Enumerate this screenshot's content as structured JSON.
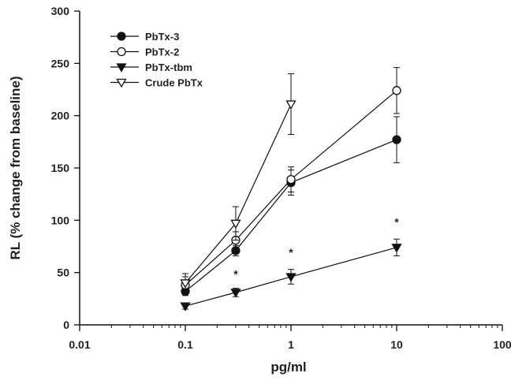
{
  "chart_data": {
    "type": "line",
    "title": "",
    "xlabel": "pg/ml",
    "ylabel": "RL (% change from baseline)",
    "xscale": "log",
    "xlim": [
      0.01,
      100
    ],
    "ylim": [
      0,
      300
    ],
    "xticks": [
      0.01,
      0.1,
      1,
      10,
      100
    ],
    "xtick_labels": [
      "0.01",
      "0.1",
      "1",
      "10",
      "100"
    ],
    "yticks": [
      0,
      50,
      100,
      150,
      200,
      250,
      300
    ],
    "ytick_labels": [
      "0",
      "50",
      "100",
      "150",
      "200",
      "250",
      "300"
    ],
    "grid": false,
    "legend_position": "top-left",
    "series": [
      {
        "name": "PbTx-3",
        "marker": "filled-circle",
        "x": [
          0.1,
          0.3,
          1,
          10
        ],
        "y": [
          32,
          71,
          136,
          177
        ],
        "err": [
          4,
          5,
          12,
          22
        ]
      },
      {
        "name": "PbTx-2",
        "marker": "open-circle",
        "x": [
          0.1,
          0.3,
          1,
          10
        ],
        "y": [
          38,
          81,
          139,
          224
        ],
        "err": [
          8,
          8,
          12,
          22
        ]
      },
      {
        "name": "PbTx-tbm",
        "marker": "filled-triangle-down",
        "x": [
          0.1,
          0.3,
          1,
          10
        ],
        "y": [
          18,
          31,
          46,
          74
        ],
        "err": [
          3,
          4,
          7,
          8
        ]
      },
      {
        "name": "Crude PbTx",
        "marker": "open-triangle-down",
        "x": [
          0.1,
          0.3,
          1
        ],
        "y": [
          40,
          97,
          211
        ],
        "err": [
          9,
          16,
          29
        ]
      }
    ],
    "annotations": [
      {
        "text": "*",
        "x": 0.3,
        "y": 50
      },
      {
        "text": "*",
        "x": 1,
        "y": 71
      },
      {
        "text": "*",
        "x": 10,
        "y": 100
      }
    ]
  }
}
